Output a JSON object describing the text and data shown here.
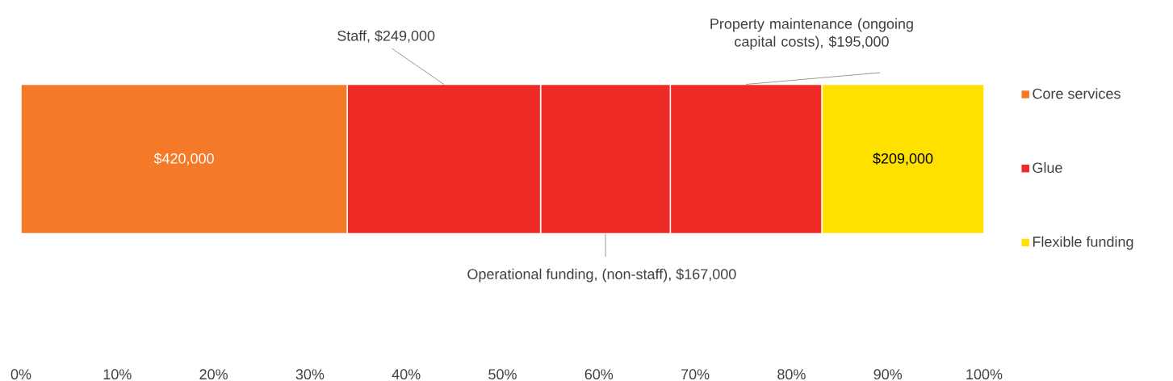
{
  "chart_data": {
    "type": "bar",
    "orientation": "horizontal",
    "stacked": true,
    "categories": [
      null
    ],
    "xlim": [
      0,
      100
    ],
    "xticks": [
      {
        "value": 0,
        "label": "0%"
      },
      {
        "value": 10,
        "label": "10%"
      },
      {
        "value": 20,
        "label": "20%"
      },
      {
        "value": 30,
        "label": "30%"
      },
      {
        "value": 40,
        "label": "40%"
      },
      {
        "value": 50,
        "label": "50%"
      },
      {
        "value": 60,
        "label": "60%"
      },
      {
        "value": 70,
        "label": "70%"
      },
      {
        "value": 80,
        "label": "80%"
      },
      {
        "value": 90,
        "label": "90%"
      },
      {
        "value": 100,
        "label": "100%"
      }
    ],
    "legend": "right",
    "series": [
      {
        "name": "Core services",
        "color": "#f47a2a",
        "values": [
          33.87
        ]
      },
      {
        "name": "Glue",
        "color": "#ee2b27",
        "values": [
          20.08
        ]
      },
      {
        "color": "#ee2b27",
        "values": [
          13.47
        ]
      },
      {
        "color": "#ee2b27",
        "values": [
          15.73
        ]
      },
      {
        "name": "Flexible funding",
        "color": "#ffe100",
        "values": [
          16.85
        ]
      }
    ],
    "annotations": [
      "$420,000",
      "Staff,  $249,000",
      "Operational funding, (non-staff), $167,000",
      "Property maintenance (ongoing capital costs), $195,000",
      "$209,000"
    ]
  }
}
